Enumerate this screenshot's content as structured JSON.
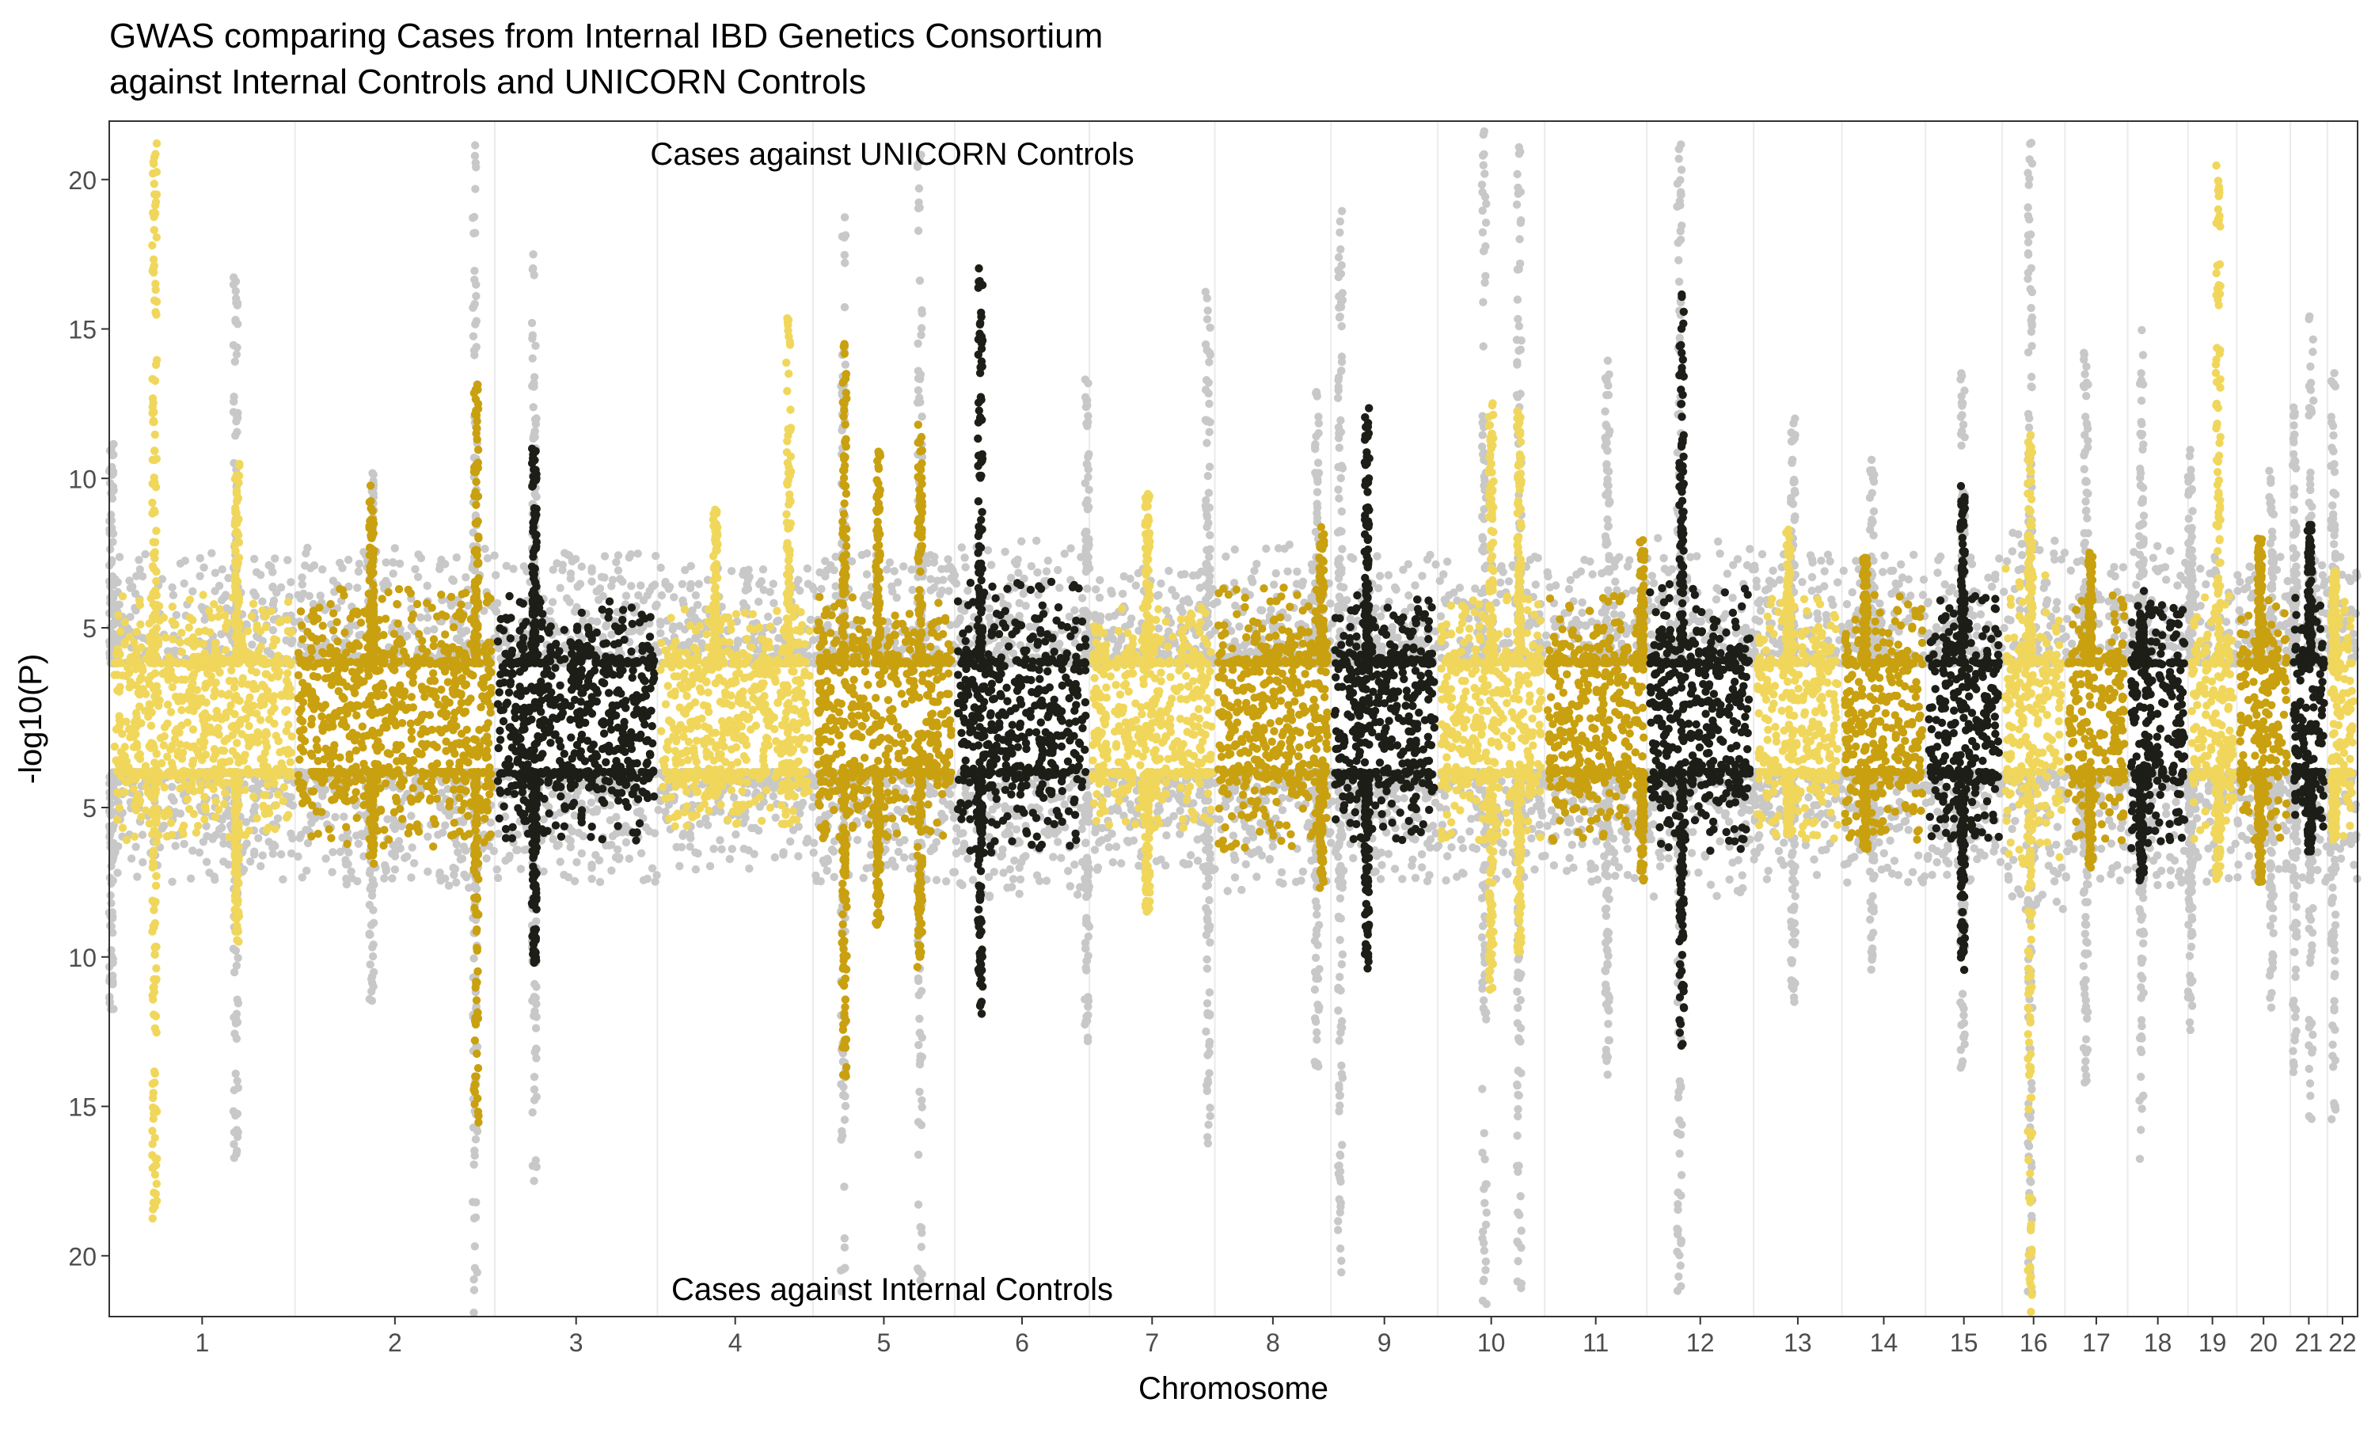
{
  "chart_data": {
    "type": "scatter",
    "subtype": "miami-plot",
    "title_lines": [
      "GWAS comparing Cases from Internal IBD Genetics Consortium",
      "against Internal Controls and UNICORN Controls"
    ],
    "xlabel": "Chromosome",
    "ylabel": "-log10(P)",
    "top_panel_label": "Cases against UNICORN Controls",
    "bottom_panel_label": "Cases against Internal Controls",
    "yticks": [
      {
        "value": 20,
        "label": "20"
      },
      {
        "value": 15,
        "label": "15"
      },
      {
        "value": 10,
        "label": "10"
      },
      {
        "value": 5,
        "label": "5"
      },
      {
        "value": -5,
        "label": "5"
      },
      {
        "value": -10,
        "label": "10"
      },
      {
        "value": -15,
        "label": "15"
      },
      {
        "value": -20,
        "label": "20"
      }
    ],
    "ylim": [
      -22,
      22
    ],
    "grid": "vertical lines at chromosome boundaries",
    "colors": {
      "background_series": "#c8c8c8",
      "palette": [
        "#f0d75c",
        "#c9a00f",
        "#1c1e17"
      ]
    },
    "chromosomes": [
      {
        "label": "1",
        "start": 0.0,
        "end": 8.0,
        "color": 0,
        "base": 2.3,
        "peaks": [
          [
            1.95,
            19.5,
            17.0
          ],
          [
            5.5,
            8.5,
            7.5
          ]
        ],
        "gray_peaks": [
          [
            5.45,
            14.8,
            14.8
          ],
          [
            0.1,
            9.2,
            9.8
          ]
        ]
      },
      {
        "label": "2",
        "start": 8.0,
        "end": 16.6,
        "color": 1,
        "base": 2.5,
        "peaks": [
          [
            3.3,
            8.0,
            5.0
          ],
          [
            7.8,
            11.5,
            14.0
          ]
        ],
        "gray_peaks": [
          [
            7.75,
            21.0,
            21.0
          ],
          [
            3.3,
            8.2,
            9.5
          ]
        ]
      },
      {
        "label": "3",
        "start": 16.6,
        "end": 23.6,
        "color": 2,
        "base": 2.3,
        "peaks": [
          [
            1.7,
            9.0,
            8.2
          ]
        ],
        "gray_peaks": [
          [
            1.7,
            15.8,
            15.8
          ]
        ]
      },
      {
        "label": "4",
        "start": 23.6,
        "end": 30.3,
        "color": 0,
        "base": 1.9,
        "peaks": [
          [
            5.65,
            13.5,
            1.5
          ],
          [
            2.5,
            7.0,
            2.5
          ]
        ],
        "gray_peaks": []
      },
      {
        "label": "5",
        "start": 30.3,
        "end": 36.4,
        "color": 1,
        "base": 2.3,
        "peaks": [
          [
            1.35,
            12.5,
            12.0
          ],
          [
            4.6,
            10.0,
            8.5
          ],
          [
            2.8,
            9.0,
            7.0
          ]
        ],
        "gray_peaks": [
          [
            1.3,
            17.0,
            19.5
          ],
          [
            4.6,
            19.7,
            19.7
          ]
        ]
      },
      {
        "label": "6",
        "start": 36.4,
        "end": 42.2,
        "color": 2,
        "base": 2.8,
        "peaks": [
          [
            1.1,
            15.2,
            10.0
          ]
        ],
        "gray_peaks": [
          [
            5.7,
            11.5,
            11.0
          ]
        ]
      },
      {
        "label": "7",
        "start": 42.2,
        "end": 47.6,
        "color": 0,
        "base": 1.9,
        "peaks": [
          [
            2.5,
            7.5,
            6.5
          ]
        ],
        "gray_peaks": [
          [
            5.1,
            14.3,
            14.3
          ]
        ]
      },
      {
        "label": "8",
        "start": 47.6,
        "end": 52.6,
        "color": 1,
        "base": 2.6,
        "peaks": [
          [
            4.6,
            6.5,
            5.8
          ]
        ],
        "gray_peaks": [
          [
            4.4,
            11.2,
            12.0
          ]
        ]
      },
      {
        "label": "9",
        "start": 52.6,
        "end": 57.2,
        "color": 2,
        "base": 2.3,
        "peaks": [
          [
            1.55,
            10.5,
            8.5
          ]
        ],
        "gray_peaks": [
          [
            0.4,
            17.8,
            19.5
          ]
        ]
      },
      {
        "label": "10",
        "start": 57.2,
        "end": 61.8,
        "color": 0,
        "base": 2.3,
        "peaks": [
          [
            2.3,
            11.0,
            9.5
          ],
          [
            3.5,
            10.5,
            8.0
          ]
        ],
        "gray_peaks": [
          [
            2.0,
            21.0,
            21.0
          ],
          [
            3.5,
            19.5,
            19.5
          ]
        ]
      },
      {
        "label": "11",
        "start": 61.8,
        "end": 66.2,
        "color": 1,
        "base": 2.3,
        "peaks": [
          [
            4.2,
            6.0,
            5.5
          ]
        ],
        "gray_peaks": [
          [
            2.7,
            12.0,
            12.0
          ]
        ]
      },
      {
        "label": "12",
        "start": 66.2,
        "end": 70.8,
        "color": 2,
        "base": 2.8,
        "peaks": [
          [
            1.5,
            14.2,
            11.0
          ]
        ],
        "gray_peaks": [
          [
            1.4,
            19.8,
            19.8
          ]
        ]
      },
      {
        "label": "13",
        "start": 70.8,
        "end": 74.6,
        "color": 0,
        "base": 2.3,
        "peaks": [
          [
            1.5,
            6.5,
            4.0
          ]
        ],
        "gray_peaks": [
          [
            1.7,
            10.0,
            9.5
          ]
        ]
      },
      {
        "label": "14",
        "start": 74.6,
        "end": 78.2,
        "color": 1,
        "base": 2.3,
        "peaks": [
          [
            1.0,
            5.5,
            4.5
          ]
        ],
        "gray_peaks": [
          [
            1.3,
            8.8,
            8.6
          ]
        ]
      },
      {
        "label": "15",
        "start": 78.2,
        "end": 81.5,
        "color": 2,
        "base": 2.3,
        "peaks": [
          [
            1.6,
            7.8,
            8.5
          ]
        ],
        "gray_peaks": [
          [
            1.6,
            12.3,
            12.5
          ]
        ]
      },
      {
        "label": "16",
        "start": 81.5,
        "end": 84.2,
        "color": 0,
        "base": 3.2,
        "peaks": [
          [
            1.2,
            9.5,
            20.0
          ]
        ],
        "gray_peaks": [
          [
            1.2,
            19.5,
            19.5
          ]
        ]
      },
      {
        "label": "17",
        "start": 84.2,
        "end": 86.9,
        "color": 1,
        "base": 2.3,
        "peaks": [
          [
            1.1,
            5.5,
            5.0
          ]
        ],
        "gray_peaks": [
          [
            0.9,
            12.5,
            12.5
          ]
        ]
      },
      {
        "label": "18",
        "start": 86.9,
        "end": 89.5,
        "color": 2,
        "base": 2.6,
        "peaks": [
          [
            0.6,
            3.5,
            5.5
          ]
        ],
        "gray_peaks": [
          [
            0.6,
            13.0,
            14.8
          ]
        ]
      },
      {
        "label": "19",
        "start": 89.5,
        "end": 91.6,
        "color": 0,
        "base": 2.3,
        "peaks": [
          [
            1.3,
            19.0,
            5.5
          ]
        ],
        "gray_peaks": [
          [
            0.1,
            9.0,
            10.5
          ]
        ]
      },
      {
        "label": "20",
        "start": 91.6,
        "end": 93.9,
        "color": 1,
        "base": 2.3,
        "peaks": [
          [
            1.0,
            6.0,
            5.5
          ]
        ],
        "gray_peaks": [
          [
            1.5,
            8.5,
            10.0
          ]
        ]
      },
      {
        "label": "21",
        "start": 93.9,
        "end": 95.5,
        "color": 2,
        "base": 2.3,
        "peaks": [
          [
            0.85,
            6.5,
            4.5
          ]
        ],
        "gray_peaks": [
          [
            0.2,
            10.5,
            12.0
          ],
          [
            0.9,
            13.5,
            13.5
          ]
        ]
      },
      {
        "label": "22",
        "start": 95.5,
        "end": 96.8,
        "color": 0,
        "base": 2.3,
        "peaks": [
          [
            0.3,
            5.0,
            4.0
          ]
        ],
        "gray_peaks": [
          [
            0.25,
            12.0,
            14.0
          ]
        ]
      }
    ]
  }
}
